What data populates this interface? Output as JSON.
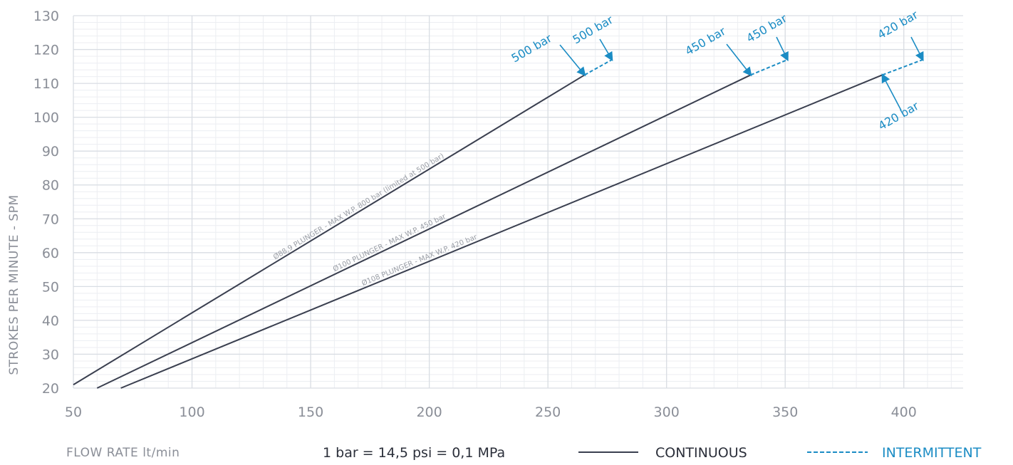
{
  "chart_data": {
    "type": "line",
    "xlabel": "FLOW RATE lt/min",
    "ylabel": "STROKES PER MINUTE - SPM",
    "xlim": [
      50,
      425
    ],
    "ylim": [
      20,
      130
    ],
    "x_ticks": [
      "50",
      "100",
      "150",
      "200",
      "250",
      "300",
      "350",
      "400"
    ],
    "y_ticks": [
      "20",
      "30",
      "40",
      "50",
      "60",
      "70",
      "80",
      "90",
      "100",
      "110",
      "120",
      "130"
    ],
    "grid": true,
    "series": [
      {
        "name": "Ø88,9 PLUNGER - MAX W.P. 800 bar (limited at 500 bar)",
        "continuous": [
          [
            50,
            21
          ],
          [
            265.5,
            112.5
          ]
        ],
        "intermittent": [
          [
            265.5,
            112.5
          ],
          [
            277,
            117
          ]
        ]
      },
      {
        "name": "Ø100 PLUNGER - MAX W.P. 450 bar",
        "continuous": [
          [
            60,
            20
          ],
          [
            335.5,
            112.5
          ]
        ],
        "intermittent": [
          [
            335.5,
            112.5
          ],
          [
            351,
            117
          ]
        ]
      },
      {
        "name": "Ø108 PLUNGER - MAX W.P. 420 bar",
        "continuous": [
          [
            70,
            20
          ],
          [
            391,
            112.5
          ]
        ],
        "intermittent": [
          [
            391,
            112.5
          ],
          [
            408,
            117
          ]
        ]
      }
    ],
    "annotations": [
      "500 bar",
      "500 bar",
      "450 bar",
      "450 bar",
      "420 bar",
      "420 bar"
    ]
  },
  "legend": {
    "conversion": "1 bar = 14,5 psi = 0,1 MPa",
    "continuous": "CONTINUOUS",
    "intermittent": "INTERMITTENT"
  },
  "colors": {
    "line": "#3a3f4f",
    "accent": "#1b8cc4",
    "major_grid": "#d9dde3",
    "minor_grid": "#eceef2",
    "tick_text": "#8a8e97"
  }
}
